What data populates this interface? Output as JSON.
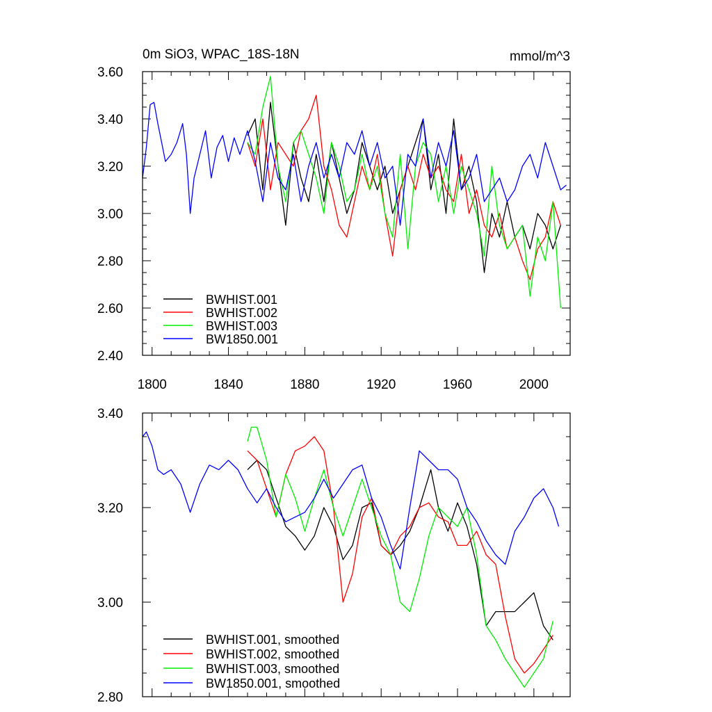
{
  "chart_data": [
    {
      "type": "line",
      "title": "0m SiO3, WPAC_18S-18N",
      "units": "mmol/m^3",
      "xlim": [
        1795,
        2019
      ],
      "ylim": [
        2.4,
        3.6
      ],
      "xticks": [
        1800,
        1840,
        1880,
        1920,
        1960,
        2000
      ],
      "xtick_labels": [
        "1800",
        "1840",
        "1880",
        "1920",
        "1960",
        "2000"
      ],
      "yticks": [
        2.4,
        2.6,
        2.8,
        3.0,
        3.2,
        3.4,
        3.6
      ],
      "ytick_labels": [
        "2.40",
        "2.60",
        "2.80",
        "3.00",
        "3.20",
        "3.40",
        "3.60"
      ],
      "legend_position": "bottom-left",
      "series": [
        {
          "name": "BWHIST.001",
          "color": "#000000",
          "x": [
            1850,
            1854,
            1858,
            1862,
            1866,
            1870,
            1874,
            1878,
            1882,
            1886,
            1890,
            1894,
            1898,
            1902,
            1906,
            1910,
            1914,
            1918,
            1922,
            1926,
            1930,
            1934,
            1938,
            1942,
            1946,
            1950,
            1954,
            1958,
            1962,
            1966,
            1970,
            1974,
            1978,
            1982,
            1986,
            1990,
            1994,
            1998,
            2002,
            2006,
            2010,
            2014
          ],
          "values": [
            3.33,
            3.4,
            3.1,
            3.47,
            3.2,
            2.95,
            3.3,
            3.15,
            3.05,
            3.25,
            3.05,
            3.3,
            3.15,
            3.0,
            3.1,
            3.3,
            3.2,
            3.1,
            3.2,
            3.0,
            3.1,
            3.2,
            3.3,
            3.4,
            3.1,
            3.25,
            3.0,
            3.4,
            3.1,
            3.2,
            3.05,
            2.75,
            3.0,
            2.9,
            3.05,
            2.9,
            2.95,
            2.85,
            3.0,
            2.95,
            2.85,
            2.95
          ]
        },
        {
          "name": "BWHIST.002",
          "color": "#ff0000",
          "x": [
            1850,
            1854,
            1858,
            1862,
            1866,
            1870,
            1874,
            1878,
            1882,
            1886,
            1890,
            1894,
            1898,
            1902,
            1906,
            1910,
            1914,
            1918,
            1922,
            1926,
            1930,
            1934,
            1938,
            1942,
            1946,
            1950,
            1954,
            1958,
            1962,
            1966,
            1970,
            1974,
            1978,
            1982,
            1986,
            1990,
            1994,
            1998,
            2002,
            2006,
            2010,
            2014
          ],
          "values": [
            3.3,
            3.2,
            3.4,
            3.1,
            3.3,
            3.25,
            3.2,
            3.35,
            3.4,
            3.5,
            3.2,
            3.1,
            2.95,
            2.9,
            3.05,
            3.2,
            3.1,
            3.25,
            3.0,
            2.82,
            3.1,
            3.2,
            3.1,
            3.25,
            3.15,
            3.2,
            3.1,
            3.05,
            3.25,
            3.0,
            3.1,
            2.95,
            2.9,
            3.0,
            2.85,
            2.9,
            2.8,
            2.72,
            2.85,
            2.9,
            3.05,
            2.95
          ]
        },
        {
          "name": "BWHIST.003",
          "color": "#00ee00",
          "x": [
            1850,
            1854,
            1858,
            1862,
            1866,
            1870,
            1874,
            1878,
            1882,
            1886,
            1890,
            1894,
            1898,
            1902,
            1906,
            1910,
            1914,
            1918,
            1922,
            1926,
            1930,
            1934,
            1938,
            1942,
            1946,
            1950,
            1954,
            1958,
            1962,
            1966,
            1970,
            1974,
            1978,
            1982,
            1986,
            1990,
            1994,
            1998,
            2002,
            2006,
            2010,
            2014
          ],
          "values": [
            3.3,
            3.25,
            3.45,
            3.58,
            3.2,
            3.05,
            3.3,
            3.35,
            3.25,
            3.15,
            3.0,
            3.3,
            3.2,
            3.05,
            3.1,
            3.25,
            3.1,
            3.2,
            3.0,
            2.9,
            3.25,
            2.85,
            3.2,
            3.3,
            3.25,
            3.05,
            3.2,
            3.0,
            3.2,
            3.1,
            3.0,
            2.82,
            3.2,
            2.95,
            2.85,
            2.9,
            2.95,
            2.65,
            2.9,
            2.8,
            3.05,
            2.6
          ]
        },
        {
          "name": "BW1850.001",
          "color": "#0000ff",
          "x": [
            1795,
            1797,
            1799,
            1801,
            1803,
            1805,
            1807,
            1810,
            1813,
            1816,
            1818,
            1820,
            1822,
            1825,
            1828,
            1831,
            1834,
            1837,
            1840,
            1843,
            1846,
            1850,
            1854,
            1858,
            1862,
            1866,
            1870,
            1874,
            1878,
            1882,
            1886,
            1890,
            1894,
            1898,
            1902,
            1906,
            1910,
            1914,
            1918,
            1922,
            1926,
            1930,
            1934,
            1938,
            1942,
            1946,
            1950,
            1954,
            1958,
            1962,
            1966,
            1970,
            1974,
            1978,
            1982,
            1986,
            1990,
            1994,
            1998,
            2002,
            2006,
            2010,
            2014,
            2017
          ],
          "values": [
            3.15,
            3.28,
            3.46,
            3.47,
            3.38,
            3.3,
            3.22,
            3.25,
            3.3,
            3.38,
            3.25,
            3.0,
            3.15,
            3.25,
            3.35,
            3.15,
            3.28,
            3.33,
            3.22,
            3.32,
            3.25,
            3.35,
            3.22,
            3.05,
            3.3,
            3.15,
            3.1,
            3.25,
            3.05,
            3.2,
            3.3,
            3.15,
            3.25,
            3.15,
            3.3,
            3.25,
            3.35,
            3.2,
            3.3,
            3.15,
            3.2,
            2.95,
            3.25,
            3.2,
            3.4,
            3.15,
            3.3,
            3.2,
            3.35,
            3.1,
            3.15,
            3.25,
            3.05,
            3.1,
            3.15,
            3.05,
            3.1,
            3.2,
            3.25,
            3.15,
            3.3,
            3.2,
            3.1,
            3.12
          ]
        }
      ]
    },
    {
      "type": "line",
      "title": "",
      "xlim": [
        1795,
        2019
      ],
      "ylim": [
        2.8,
        3.4
      ],
      "yticks": [
        2.8,
        3.0,
        3.2,
        3.4
      ],
      "ytick_labels": [
        "2.80",
        "3.00",
        "3.20",
        "3.40"
      ],
      "xticks": [
        1800,
        1840,
        1880,
        1920,
        1960,
        2000
      ],
      "legend_position": "bottom-left",
      "series": [
        {
          "name": "BWHIST.001, smoothed",
          "color": "#000000",
          "x": [
            1850,
            1855,
            1860,
            1865,
            1870,
            1875,
            1880,
            1885,
            1890,
            1895,
            1900,
            1905,
            1910,
            1915,
            1920,
            1925,
            1930,
            1935,
            1940,
            1943,
            1946,
            1950,
            1955,
            1960,
            1965,
            1970,
            1975,
            1980,
            1985,
            1990,
            1995,
            2000,
            2005,
            2010
          ],
          "values": [
            3.28,
            3.3,
            3.28,
            3.22,
            3.16,
            3.14,
            3.11,
            3.14,
            3.2,
            3.16,
            3.09,
            3.12,
            3.2,
            3.21,
            3.12,
            3.1,
            3.12,
            3.15,
            3.2,
            3.24,
            3.28,
            3.2,
            3.15,
            3.21,
            3.16,
            3.08,
            2.95,
            2.98,
            2.98,
            2.98,
            3.0,
            3.02,
            2.95,
            2.92
          ]
        },
        {
          "name": "BWHIST.002, smoothed",
          "color": "#ff0000",
          "x": [
            1850,
            1855,
            1860,
            1865,
            1870,
            1875,
            1880,
            1885,
            1890,
            1895,
            1900,
            1905,
            1910,
            1915,
            1920,
            1925,
            1930,
            1935,
            1940,
            1945,
            1950,
            1955,
            1960,
            1965,
            1970,
            1975,
            1980,
            1985,
            1990,
            1995,
            2000,
            2005,
            2010
          ],
          "values": [
            3.32,
            3.3,
            3.24,
            3.18,
            3.27,
            3.32,
            3.33,
            3.35,
            3.32,
            3.2,
            3.0,
            3.06,
            3.18,
            3.22,
            3.12,
            3.1,
            3.14,
            3.16,
            3.2,
            3.21,
            3.18,
            3.17,
            3.12,
            3.12,
            3.15,
            3.1,
            3.08,
            2.97,
            2.88,
            2.85,
            2.87,
            2.9,
            2.93
          ]
        },
        {
          "name": "BWHIST.003, smoothed",
          "color": "#00ee00",
          "x": [
            1850,
            1852,
            1855,
            1860,
            1865,
            1870,
            1875,
            1880,
            1885,
            1890,
            1895,
            1900,
            1905,
            1910,
            1915,
            1920,
            1925,
            1930,
            1935,
            1940,
            1945,
            1950,
            1955,
            1960,
            1965,
            1970,
            1975,
            1980,
            1985,
            1990,
            1995,
            2000,
            2005,
            2010
          ],
          "values": [
            3.34,
            3.37,
            3.37,
            3.3,
            3.18,
            3.27,
            3.22,
            3.15,
            3.22,
            3.28,
            3.2,
            3.14,
            3.2,
            3.26,
            3.2,
            3.14,
            3.1,
            3.0,
            2.98,
            3.05,
            3.14,
            3.2,
            3.18,
            3.16,
            3.2,
            3.1,
            2.95,
            2.92,
            2.88,
            2.85,
            2.82,
            2.85,
            2.88,
            2.96
          ]
        },
        {
          "name": "BW1850.001, smoothed",
          "color": "#0000ff",
          "x": [
            1795,
            1797,
            1800,
            1803,
            1806,
            1810,
            1815,
            1820,
            1825,
            1830,
            1835,
            1840,
            1845,
            1850,
            1855,
            1860,
            1865,
            1870,
            1875,
            1880,
            1885,
            1890,
            1895,
            1900,
            1905,
            1910,
            1915,
            1920,
            1925,
            1930,
            1935,
            1940,
            1945,
            1950,
            1955,
            1960,
            1965,
            1970,
            1975,
            1980,
            1985,
            1990,
            1995,
            2000,
            2005,
            2010,
            2013
          ],
          "values": [
            3.35,
            3.36,
            3.33,
            3.28,
            3.27,
            3.28,
            3.25,
            3.19,
            3.25,
            3.29,
            3.28,
            3.3,
            3.28,
            3.24,
            3.21,
            3.24,
            3.2,
            3.17,
            3.18,
            3.19,
            3.22,
            3.26,
            3.22,
            3.25,
            3.28,
            3.29,
            3.22,
            3.18,
            3.12,
            3.07,
            3.2,
            3.32,
            3.3,
            3.28,
            3.28,
            3.26,
            3.2,
            3.17,
            3.13,
            3.1,
            3.08,
            3.15,
            3.18,
            3.22,
            3.24,
            3.2,
            3.16
          ]
        }
      ]
    }
  ]
}
